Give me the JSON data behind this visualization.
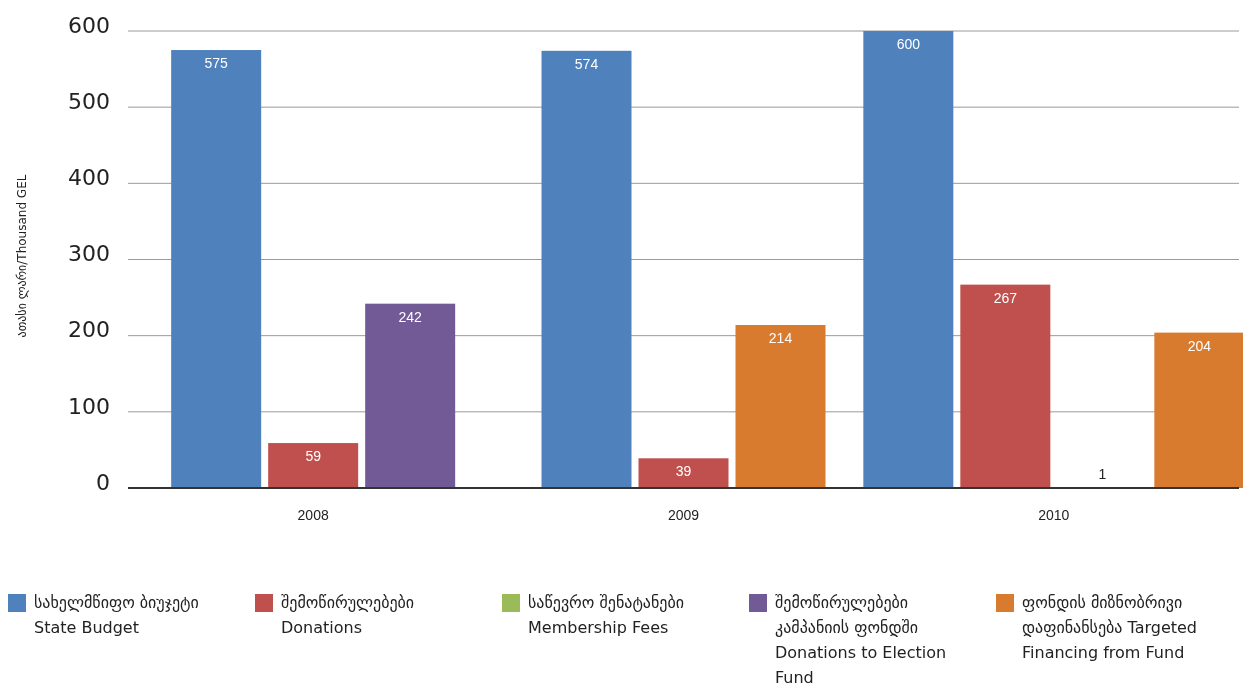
{
  "chart_data": {
    "type": "bar",
    "ylabel": "ათასი ლარი/Thousand GEL",
    "categories": [
      "2008",
      "2009",
      "2010"
    ],
    "series": [
      {
        "name": "სახელმწიფო ბიუჯეტი State Budget",
        "color": "#4f81bd",
        "values": [
          575,
          574,
          600
        ]
      },
      {
        "name": "შემოწირულებები Donations",
        "color": "#c0504d",
        "values": [
          59,
          39,
          267
        ]
      },
      {
        "name": "საწევრო შენატანები Membership Fees",
        "color": "#9bbb59",
        "values": [
          null,
          null,
          1
        ]
      },
      {
        "name": "შემოწირულებები კამპანიის ფონდში Donations to Election Fund",
        "color": "#725a96",
        "values": [
          242,
          null,
          null
        ]
      },
      {
        "name": "ფონდის მიზნობრივი დაფინანსება Targeted Financing from Fund",
        "color": "#d97b2f",
        "values": [
          null,
          214,
          204
        ]
      }
    ],
    "ylim": [
      0,
      600
    ],
    "yticks": [
      0,
      100,
      200,
      300,
      400,
      500,
      600
    ],
    "grid": "y",
    "legend": "bottom",
    "data_labels": true
  }
}
